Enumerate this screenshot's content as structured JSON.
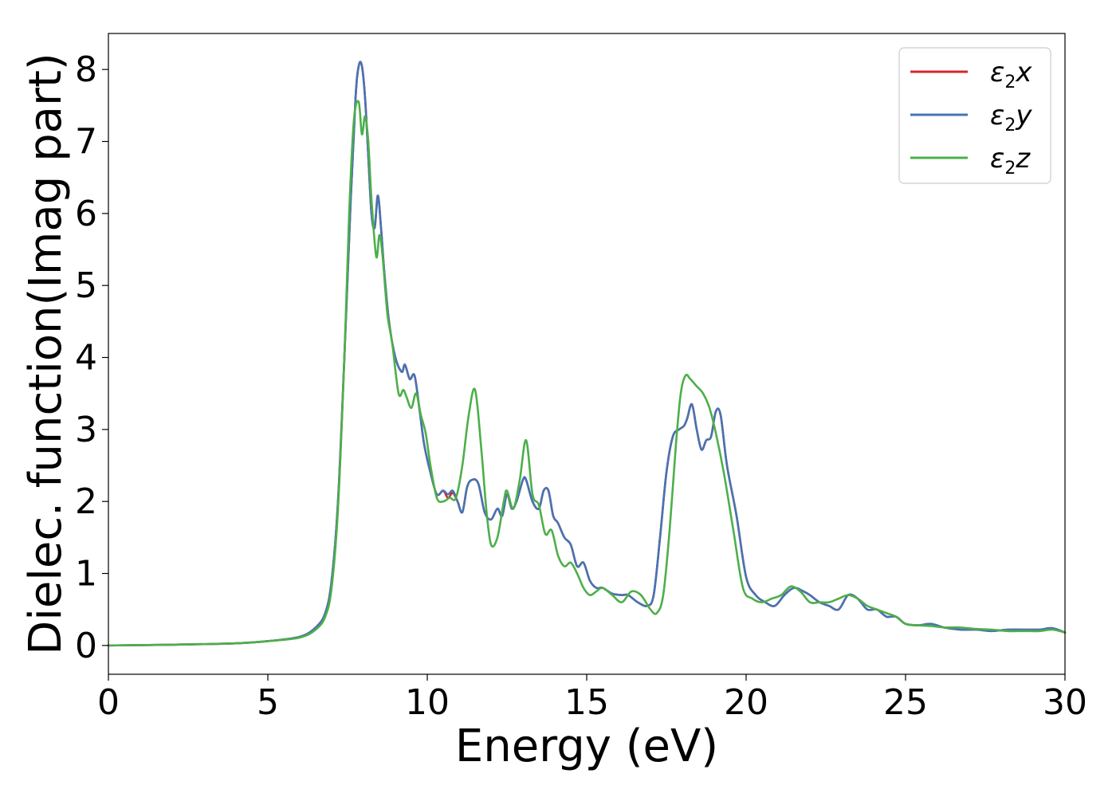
{
  "chart_data": {
    "type": "line",
    "title": "",
    "xlabel": "Energy (eV)",
    "ylabel": "Dielec. function(Imag part)",
    "xlim": [
      0,
      30
    ],
    "ylim": [
      -0.4,
      8.5
    ],
    "xticks": [
      "0",
      "5",
      "10",
      "15",
      "20",
      "25",
      "30"
    ],
    "yticks": [
      "0",
      "1",
      "2",
      "3",
      "4",
      "5",
      "6",
      "7",
      "8"
    ],
    "grid": false,
    "legend_position": "top-right",
    "series": [
      {
        "name": "ε2x",
        "legend_base": "ε",
        "legend_sub": "2",
        "legend_var": "x",
        "color": "#d62728",
        "x": [
          0,
          2,
          4,
          5,
          6,
          6.5,
          6.8,
          7,
          7.2,
          7.4,
          7.6,
          7.75,
          7.85,
          7.95,
          8.05,
          8.15,
          8.25,
          8.35,
          8.45,
          8.55,
          8.65,
          8.8,
          9,
          9.2,
          9.3,
          9.45,
          9.6,
          9.75,
          9.9,
          10.1,
          10.3,
          10.5,
          10.65,
          10.8,
          10.95,
          11.1,
          11.25,
          11.4,
          11.6,
          11.8,
          12,
          12.2,
          12.35,
          12.5,
          12.65,
          12.8,
          13,
          13.1,
          13.3,
          13.5,
          13.65,
          13.8,
          13.95,
          14.1,
          14.3,
          14.5,
          14.7,
          14.9,
          15.1,
          15.3,
          15.5,
          15.8,
          16.1,
          16.3,
          16.6,
          16.9,
          17.1,
          17.3,
          17.5,
          17.7,
          17.9,
          18.05,
          18.15,
          18.3,
          18.45,
          18.6,
          18.75,
          18.9,
          19.05,
          19.2,
          19.4,
          19.7,
          20,
          20.3,
          20.6,
          20.9,
          21.2,
          21.5,
          21.8,
          22,
          22.3,
          22.6,
          22.9,
          23.2,
          23.5,
          23.8,
          24.1,
          24.4,
          24.7,
          25,
          25.4,
          25.8,
          26.2,
          26.7,
          27.2,
          27.7,
          28.2,
          28.7,
          29.2,
          29.6,
          30
        ],
        "y": [
          0,
          0.01,
          0.03,
          0.06,
          0.12,
          0.25,
          0.45,
          0.9,
          2.0,
          4.0,
          6.2,
          7.6,
          8.05,
          8.05,
          7.6,
          6.8,
          6.0,
          5.8,
          6.25,
          5.8,
          5.2,
          4.5,
          4.0,
          3.8,
          3.9,
          3.7,
          3.75,
          3.3,
          2.8,
          2.4,
          2.1,
          2.15,
          2.05,
          2.12,
          2.0,
          1.85,
          2.2,
          2.3,
          2.25,
          1.85,
          1.75,
          1.9,
          1.8,
          2.1,
          1.9,
          2.0,
          2.3,
          2.3,
          2.0,
          1.9,
          2.15,
          2.15,
          1.8,
          1.7,
          1.5,
          1.4,
          1.1,
          1.15,
          0.9,
          0.8,
          0.8,
          0.72,
          0.7,
          0.7,
          0.6,
          0.55,
          0.7,
          1.5,
          2.4,
          2.9,
          3.0,
          3.05,
          3.15,
          3.35,
          3.0,
          2.72,
          2.85,
          2.9,
          3.25,
          3.2,
          2.5,
          1.8,
          0.95,
          0.7,
          0.6,
          0.55,
          0.7,
          0.8,
          0.75,
          0.7,
          0.6,
          0.55,
          0.5,
          0.7,
          0.65,
          0.5,
          0.5,
          0.4,
          0.4,
          0.3,
          0.28,
          0.3,
          0.25,
          0.22,
          0.22,
          0.2,
          0.22,
          0.22,
          0.22,
          0.24,
          0.18
        ]
      },
      {
        "name": "ε2y",
        "legend_base": "ε",
        "legend_sub": "2",
        "legend_var": "y",
        "color": "#4574b3",
        "x": [
          0,
          2,
          4,
          5,
          6,
          6.5,
          6.8,
          7,
          7.2,
          7.4,
          7.6,
          7.75,
          7.85,
          7.95,
          8.05,
          8.15,
          8.25,
          8.35,
          8.45,
          8.55,
          8.65,
          8.8,
          9,
          9.2,
          9.3,
          9.45,
          9.6,
          9.75,
          9.9,
          10.1,
          10.3,
          10.5,
          10.65,
          10.8,
          10.95,
          11.1,
          11.25,
          11.4,
          11.6,
          11.8,
          12,
          12.2,
          12.35,
          12.5,
          12.65,
          12.8,
          13,
          13.1,
          13.3,
          13.5,
          13.65,
          13.8,
          13.95,
          14.1,
          14.3,
          14.5,
          14.7,
          14.9,
          15.1,
          15.3,
          15.5,
          15.8,
          16.1,
          16.3,
          16.6,
          16.9,
          17.1,
          17.3,
          17.5,
          17.7,
          17.9,
          18.05,
          18.15,
          18.3,
          18.45,
          18.6,
          18.75,
          18.9,
          19.05,
          19.2,
          19.4,
          19.7,
          20,
          20.3,
          20.6,
          20.9,
          21.2,
          21.5,
          21.8,
          22,
          22.3,
          22.6,
          22.9,
          23.2,
          23.5,
          23.8,
          24.1,
          24.4,
          24.7,
          25,
          25.4,
          25.8,
          26.2,
          26.7,
          27.2,
          27.7,
          28.2,
          28.7,
          29.2,
          29.6,
          30
        ],
        "y": [
          0,
          0.01,
          0.03,
          0.06,
          0.12,
          0.25,
          0.45,
          0.9,
          2.0,
          4.0,
          6.2,
          7.6,
          8.05,
          8.05,
          7.6,
          6.8,
          6.0,
          5.8,
          6.25,
          5.8,
          5.2,
          4.5,
          4.0,
          3.8,
          3.9,
          3.7,
          3.75,
          3.3,
          2.8,
          2.4,
          2.1,
          2.15,
          2.1,
          2.15,
          2.0,
          1.85,
          2.2,
          2.3,
          2.25,
          1.85,
          1.75,
          1.9,
          1.8,
          2.1,
          1.9,
          2.0,
          2.3,
          2.3,
          2.0,
          1.9,
          2.15,
          2.15,
          1.8,
          1.7,
          1.5,
          1.4,
          1.1,
          1.15,
          0.9,
          0.8,
          0.8,
          0.72,
          0.7,
          0.7,
          0.6,
          0.55,
          0.7,
          1.5,
          2.4,
          2.9,
          3.0,
          3.05,
          3.15,
          3.35,
          3.0,
          2.72,
          2.85,
          2.9,
          3.25,
          3.2,
          2.5,
          1.8,
          0.95,
          0.7,
          0.6,
          0.55,
          0.7,
          0.8,
          0.75,
          0.7,
          0.6,
          0.55,
          0.5,
          0.7,
          0.65,
          0.5,
          0.5,
          0.4,
          0.4,
          0.3,
          0.28,
          0.3,
          0.25,
          0.22,
          0.22,
          0.2,
          0.22,
          0.22,
          0.22,
          0.24,
          0.18
        ]
      },
      {
        "name": "ε2z",
        "legend_base": "ε",
        "legend_sub": "2",
        "legend_var": "z",
        "color": "#4daf4a",
        "x": [
          0,
          2,
          4,
          5,
          6,
          6.5,
          6.8,
          7,
          7.2,
          7.4,
          7.55,
          7.7,
          7.85,
          7.95,
          8.05,
          8.15,
          8.25,
          8.4,
          8.5,
          8.6,
          8.75,
          8.9,
          9.1,
          9.25,
          9.35,
          9.5,
          9.65,
          9.8,
          9.95,
          10.1,
          10.3,
          10.5,
          10.7,
          10.9,
          11.1,
          11.3,
          11.5,
          11.7,
          11.85,
          12,
          12.2,
          12.4,
          12.5,
          12.7,
          12.9,
          13.1,
          13.3,
          13.5,
          13.7,
          13.9,
          14.1,
          14.3,
          14.5,
          14.7,
          14.9,
          15.1,
          15.3,
          15.5,
          15.8,
          16.1,
          16.4,
          16.7,
          17,
          17.2,
          17.4,
          17.6,
          17.8,
          17.95,
          18.1,
          18.25,
          18.45,
          18.65,
          18.85,
          19.05,
          19.3,
          19.6,
          19.9,
          20.2,
          20.5,
          20.8,
          21.1,
          21.4,
          21.7,
          22,
          22.3,
          22.6,
          22.9,
          23.2,
          23.5,
          23.8,
          24.1,
          24.4,
          24.7,
          25,
          25.4,
          25.8,
          26.2,
          26.7,
          27.2,
          27.7,
          28.2,
          28.7,
          29.2,
          29.6,
          30
        ],
        "y": [
          0,
          0.01,
          0.03,
          0.06,
          0.11,
          0.22,
          0.4,
          0.8,
          1.9,
          4.0,
          6.0,
          7.3,
          7.55,
          7.1,
          7.35,
          7.0,
          6.2,
          5.4,
          5.7,
          5.4,
          4.6,
          4.2,
          3.5,
          3.55,
          3.45,
          3.3,
          3.5,
          3.2,
          2.95,
          2.5,
          2.05,
          2.0,
          2.05,
          2.05,
          2.5,
          3.2,
          3.55,
          2.7,
          1.9,
          1.4,
          1.5,
          2.0,
          2.15,
          1.9,
          2.3,
          2.85,
          2.1,
          1.95,
          1.55,
          1.6,
          1.25,
          1.1,
          1.15,
          1.0,
          0.8,
          0.7,
          0.75,
          0.8,
          0.7,
          0.6,
          0.75,
          0.7,
          0.5,
          0.45,
          0.7,
          1.6,
          2.8,
          3.5,
          3.75,
          3.7,
          3.6,
          3.5,
          3.3,
          2.95,
          2.4,
          1.6,
          0.8,
          0.65,
          0.6,
          0.65,
          0.7,
          0.82,
          0.75,
          0.6,
          0.6,
          0.6,
          0.65,
          0.7,
          0.65,
          0.55,
          0.5,
          0.45,
          0.4,
          0.3,
          0.28,
          0.27,
          0.25,
          0.25,
          0.23,
          0.22,
          0.2,
          0.2,
          0.2,
          0.22,
          0.18
        ]
      }
    ]
  }
}
